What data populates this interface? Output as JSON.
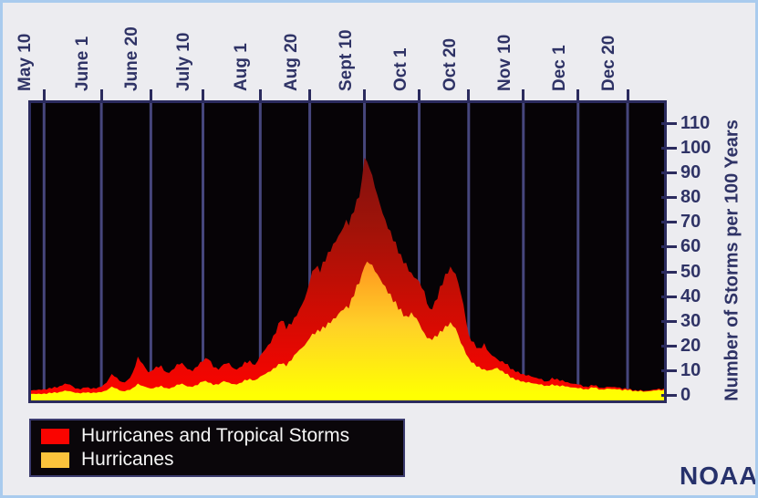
{
  "page": {
    "background": "#ececf0",
    "border_color": "#a9cbee",
    "text_color": "#2f3366"
  },
  "branding": {
    "noaa_label": "NOAA"
  },
  "legend": {
    "items": [
      {
        "label": "Hurricanes and Tropical Storms",
        "color": "#fa0400"
      },
      {
        "label": "Hurricanes",
        "color": "#fbc33c"
      }
    ]
  },
  "chart_data": {
    "type": "area",
    "overlay": true,
    "title": "",
    "xlabel": "",
    "ylabel": "Number of Storms per 100 Years",
    "ylim": [
      0,
      118
    ],
    "yticks": [
      0,
      10,
      20,
      30,
      40,
      50,
      60,
      70,
      80,
      90,
      100,
      110
    ],
    "x_range_days": [
      0,
      243
    ],
    "x_note": "d = days after May 5; plot spans ~May 5 to ~Jan 2",
    "xticks": [
      {
        "d": 5,
        "label": "May 10"
      },
      {
        "d": 27,
        "label": "June 1"
      },
      {
        "d": 46,
        "label": "June 20"
      },
      {
        "d": 66,
        "label": "July 10"
      },
      {
        "d": 88,
        "label": "Aug 1"
      },
      {
        "d": 107,
        "label": "Aug 20"
      },
      {
        "d": 128,
        "label": "Sept 10"
      },
      {
        "d": 149,
        "label": "Oct 1"
      },
      {
        "d": 168,
        "label": "Oct 20"
      },
      {
        "d": 189,
        "label": "Nov 10"
      },
      {
        "d": 210,
        "label": "Dec 1"
      },
      {
        "d": 229,
        "label": "Dec 20"
      }
    ],
    "plot_style": {
      "background": "#060306",
      "grid_color": "#46467c",
      "frame_color": "#2b2b5e",
      "grid_on": true,
      "legend_position": "bottom-left"
    },
    "series": [
      {
        "name": "Hurricanes and Tropical Storms",
        "legend_color": "#fa0400",
        "gradient": [
          "#7a1012",
          "#9e1309",
          "#cf0c03",
          "#fb0300"
        ],
        "points": [
          [
            0,
            1.8
          ],
          [
            3,
            2.2
          ],
          [
            5,
            2.4
          ],
          [
            8,
            2.6
          ],
          [
            11,
            3.6
          ],
          [
            13,
            4.6
          ],
          [
            15,
            4.2
          ],
          [
            17,
            2.6
          ],
          [
            19,
            2.2
          ],
          [
            21,
            3.0
          ],
          [
            23,
            2.4
          ],
          [
            25,
            2.6
          ],
          [
            27,
            3.2
          ],
          [
            29,
            5.0
          ],
          [
            31,
            8.5
          ],
          [
            33,
            7.0
          ],
          [
            35,
            5.2
          ],
          [
            37,
            6.0
          ],
          [
            39,
            9.0
          ],
          [
            41,
            15.5
          ],
          [
            43,
            12.5
          ],
          [
            45,
            9.2
          ],
          [
            46,
            9.6
          ],
          [
            48,
            11.5
          ],
          [
            50,
            12.0
          ],
          [
            52,
            9.2
          ],
          [
            54,
            10.0
          ],
          [
            56,
            12.5
          ],
          [
            58,
            13.0
          ],
          [
            60,
            10.5
          ],
          [
            62,
            9.6
          ],
          [
            64,
            11.5
          ],
          [
            66,
            13.5
          ],
          [
            68,
            14.5
          ],
          [
            70,
            11.2
          ],
          [
            72,
            10.2
          ],
          [
            74,
            12.5
          ],
          [
            76,
            13.0
          ],
          [
            78,
            10.6
          ],
          [
            80,
            11.2
          ],
          [
            82,
            13.5
          ],
          [
            84,
            14.0
          ],
          [
            86,
            12.2
          ],
          [
            88,
            16.0
          ],
          [
            90,
            18.5
          ],
          [
            92,
            21.0
          ],
          [
            94,
            25.0
          ],
          [
            96,
            30.0
          ],
          [
            98,
            26.5
          ],
          [
            100,
            28.5
          ],
          [
            102,
            32.0
          ],
          [
            104,
            36.5
          ],
          [
            106,
            42.0
          ],
          [
            107,
            46.0
          ],
          [
            109,
            51.0
          ],
          [
            111,
            49.5
          ],
          [
            113,
            54.0
          ],
          [
            115,
            58.0
          ],
          [
            117,
            62.0
          ],
          [
            119,
            66.0
          ],
          [
            121,
            71.0
          ],
          [
            122,
            68.5
          ],
          [
            124,
            74.0
          ],
          [
            126,
            80.0
          ],
          [
            127,
            87.0
          ],
          [
            128,
            96.0
          ],
          [
            129,
            94.5
          ],
          [
            130,
            91.5
          ],
          [
            132,
            84.0
          ],
          [
            134,
            77.0
          ],
          [
            136,
            71.0
          ],
          [
            138,
            66.5
          ],
          [
            140,
            62.0
          ],
          [
            142,
            57.0
          ],
          [
            144,
            53.5
          ],
          [
            146,
            49.5
          ],
          [
            148,
            47.0
          ],
          [
            149,
            46.0
          ],
          [
            151,
            42.0
          ],
          [
            153,
            35.0
          ],
          [
            155,
            38.0
          ],
          [
            157,
            44.0
          ],
          [
            159,
            49.0
          ],
          [
            161,
            52.0
          ],
          [
            163,
            49.0
          ],
          [
            165,
            41.0
          ],
          [
            167,
            30.0
          ],
          [
            168,
            24.5
          ],
          [
            170,
            21.5
          ],
          [
            172,
            19.0
          ],
          [
            174,
            21.0
          ],
          [
            176,
            17.0
          ],
          [
            179,
            14.5
          ],
          [
            182,
            12.5
          ],
          [
            185,
            10.5
          ],
          [
            187,
            9.5
          ],
          [
            189,
            8.5
          ],
          [
            192,
            7.5
          ],
          [
            195,
            6.5
          ],
          [
            198,
            5.5
          ],
          [
            200,
            7.0
          ],
          [
            202,
            6.6
          ],
          [
            205,
            5.2
          ],
          [
            208,
            4.5
          ],
          [
            210,
            4.2
          ],
          [
            213,
            3.4
          ],
          [
            216,
            3.8
          ],
          [
            219,
            2.9
          ],
          [
            222,
            3.3
          ],
          [
            225,
            3.0
          ],
          [
            229,
            2.3
          ],
          [
            232,
            2.0
          ],
          [
            236,
            1.7
          ],
          [
            240,
            2.2
          ],
          [
            243,
            2.6
          ]
        ]
      },
      {
        "name": "Hurricanes",
        "legend_color": "#fbc33c",
        "gradient": [
          "#ff8f1e",
          "#ffd028",
          "#ffff02"
        ],
        "points": [
          [
            0,
            0.4
          ],
          [
            3,
            0.5
          ],
          [
            5,
            0.6
          ],
          [
            8,
            0.7
          ],
          [
            11,
            1.2
          ],
          [
            13,
            1.8
          ],
          [
            15,
            1.5
          ],
          [
            17,
            0.8
          ],
          [
            19,
            0.6
          ],
          [
            21,
            0.9
          ],
          [
            23,
            0.7
          ],
          [
            25,
            0.8
          ],
          [
            27,
            1.1
          ],
          [
            29,
            1.8
          ],
          [
            31,
            3.4
          ],
          [
            33,
            2.6
          ],
          [
            35,
            1.6
          ],
          [
            37,
            2.0
          ],
          [
            39,
            2.8
          ],
          [
            41,
            4.6
          ],
          [
            43,
            3.6
          ],
          [
            46,
            2.6
          ],
          [
            48,
            3.2
          ],
          [
            50,
            3.8
          ],
          [
            52,
            2.8
          ],
          [
            54,
            3.0
          ],
          [
            56,
            4.2
          ],
          [
            58,
            4.6
          ],
          [
            60,
            3.4
          ],
          [
            62,
            3.2
          ],
          [
            64,
            4.0
          ],
          [
            66,
            5.4
          ],
          [
            68,
            5.0
          ],
          [
            70,
            4.0
          ],
          [
            72,
            4.2
          ],
          [
            74,
            5.6
          ],
          [
            76,
            5.0
          ],
          [
            78,
            4.4
          ],
          [
            80,
            4.8
          ],
          [
            82,
            6.2
          ],
          [
            84,
            6.6
          ],
          [
            86,
            6.0
          ],
          [
            88,
            7.5
          ],
          [
            90,
            8.5
          ],
          [
            92,
            9.5
          ],
          [
            94,
            11.0
          ],
          [
            96,
            12.5
          ],
          [
            98,
            11.5
          ],
          [
            100,
            14.0
          ],
          [
            102,
            17.0
          ],
          [
            104,
            19.0
          ],
          [
            106,
            21.5
          ],
          [
            107,
            23.0
          ],
          [
            109,
            24.5
          ],
          [
            111,
            25.5
          ],
          [
            113,
            27.0
          ],
          [
            115,
            29.0
          ],
          [
            117,
            31.0
          ],
          [
            119,
            34.0
          ],
          [
            121,
            36.0
          ],
          [
            122,
            35.0
          ],
          [
            124,
            40.0
          ],
          [
            126,
            45.0
          ],
          [
            127,
            49.0
          ],
          [
            128,
            52.0
          ],
          [
            129,
            54.0
          ],
          [
            130,
            53.0
          ],
          [
            132,
            50.0
          ],
          [
            134,
            47.0
          ],
          [
            136,
            44.0
          ],
          [
            138,
            41.0
          ],
          [
            140,
            38.0
          ],
          [
            142,
            35.0
          ],
          [
            144,
            32.0
          ],
          [
            146,
            33.5
          ],
          [
            148,
            31.0
          ],
          [
            149,
            29.0
          ],
          [
            151,
            25.0
          ],
          [
            153,
            23.0
          ],
          [
            155,
            24.0
          ],
          [
            157,
            26.0
          ],
          [
            159,
            28.0
          ],
          [
            161,
            29.5
          ],
          [
            163,
            27.0
          ],
          [
            165,
            21.0
          ],
          [
            167,
            16.5
          ],
          [
            168,
            15.0
          ],
          [
            170,
            13.0
          ],
          [
            172,
            11.5
          ],
          [
            174,
            10.5
          ],
          [
            176,
            10.0
          ],
          [
            179,
            11.0
          ],
          [
            182,
            8.5
          ],
          [
            185,
            7.0
          ],
          [
            187,
            6.2
          ],
          [
            189,
            5.5
          ],
          [
            192,
            4.8
          ],
          [
            195,
            4.2
          ],
          [
            198,
            3.8
          ],
          [
            200,
            4.4
          ],
          [
            202,
            4.0
          ],
          [
            205,
            3.4
          ],
          [
            208,
            3.0
          ],
          [
            210,
            2.7
          ],
          [
            213,
            2.4
          ],
          [
            216,
            2.9
          ],
          [
            219,
            2.2
          ],
          [
            222,
            2.5
          ],
          [
            225,
            2.2
          ],
          [
            229,
            1.9
          ],
          [
            232,
            1.7
          ],
          [
            236,
            1.4
          ],
          [
            240,
            1.8
          ],
          [
            243,
            2.1
          ]
        ]
      }
    ]
  }
}
